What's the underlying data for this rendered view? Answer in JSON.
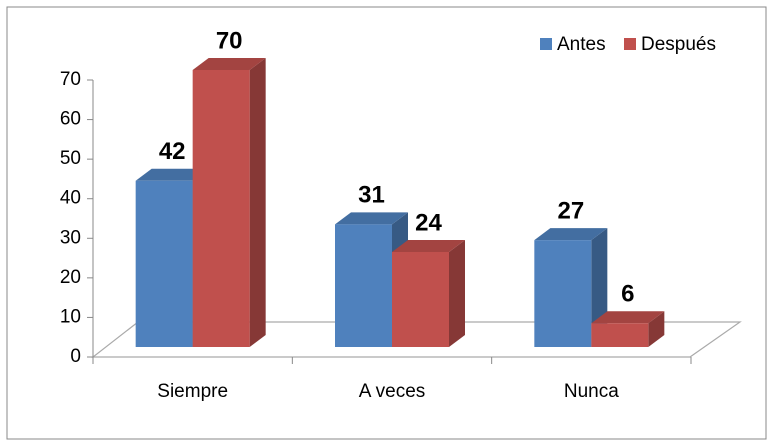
{
  "chart_data": {
    "type": "bar3d",
    "categories": [
      "Siempre",
      "A veces",
      "Nunca"
    ],
    "series": [
      {
        "name": "Antes",
        "color": "#4f81bd",
        "values": [
          42,
          31,
          27
        ]
      },
      {
        "name": "Después",
        "color": "#c0504d",
        "values": [
          70,
          24,
          6
        ]
      }
    ],
    "ylim": [
      0,
      70
    ],
    "yticks": [
      0,
      10,
      20,
      30,
      40,
      50,
      60,
      70
    ],
    "legend": "top-right"
  }
}
